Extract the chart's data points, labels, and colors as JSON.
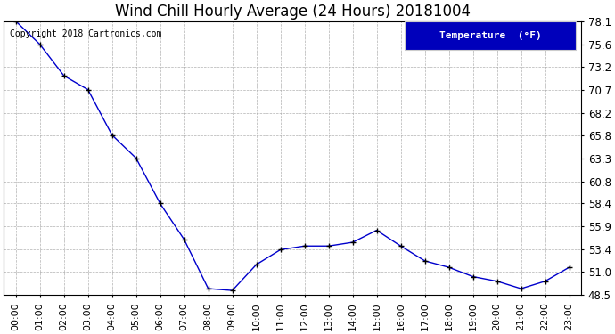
{
  "title": "Wind Chill Hourly Average (24 Hours) 20181004",
  "copyright_text": "Copyright 2018 Cartronics.com",
  "legend_label": "Temperature  (°F)",
  "hours": [
    "00:00",
    "01:00",
    "02:00",
    "03:00",
    "04:00",
    "05:00",
    "06:00",
    "07:00",
    "08:00",
    "09:00",
    "10:00",
    "11:00",
    "12:00",
    "13:00",
    "14:00",
    "15:00",
    "16:00",
    "17:00",
    "18:00",
    "19:00",
    "20:00",
    "21:00",
    "22:00",
    "23:00"
  ],
  "values": [
    78.1,
    75.6,
    72.2,
    70.7,
    65.8,
    63.3,
    58.4,
    54.5,
    49.2,
    49.0,
    51.8,
    53.4,
    53.8,
    53.8,
    54.2,
    55.5,
    53.8,
    52.2,
    51.5,
    50.5,
    50.0,
    49.2,
    50.0,
    51.5
  ],
  "ylim": [
    48.5,
    78.1
  ],
  "yticks": [
    48.5,
    51.0,
    53.4,
    55.9,
    58.4,
    60.8,
    63.3,
    65.8,
    68.2,
    70.7,
    73.2,
    75.6,
    78.1
  ],
  "line_color": "#0000cc",
  "marker_color": "#000000",
  "bg_color": "#ffffff",
  "grid_color": "#aaaaaa",
  "title_color": "#000000",
  "legend_bg": "#0000bb",
  "legend_text_color": "#ffffff",
  "title_fontsize": 12,
  "axis_fontsize": 8,
  "tick_fontsize": 8.5,
  "copyright_fontsize": 7
}
